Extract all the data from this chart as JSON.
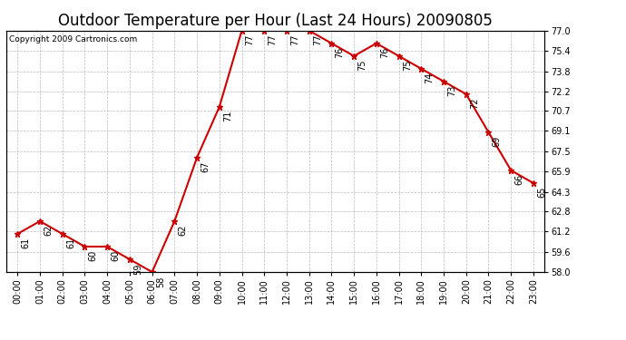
{
  "title": "Outdoor Temperature per Hour (Last 24 Hours) 20090805",
  "copyright": "Copyright 2009 Cartronics.com",
  "hours": [
    "00:00",
    "01:00",
    "02:00",
    "03:00",
    "04:00",
    "05:00",
    "06:00",
    "07:00",
    "08:00",
    "09:00",
    "10:00",
    "11:00",
    "12:00",
    "13:00",
    "14:00",
    "15:00",
    "16:00",
    "17:00",
    "18:00",
    "19:00",
    "20:00",
    "21:00",
    "22:00",
    "23:00"
  ],
  "temps": [
    61,
    62,
    61,
    60,
    60,
    59,
    58,
    62,
    67,
    71,
    77,
    77,
    77,
    77,
    76,
    75,
    76,
    75,
    74,
    73,
    72,
    69,
    66,
    65
  ],
  "ylim_min": 58.0,
  "ylim_max": 77.0,
  "yticks": [
    58.0,
    59.6,
    61.2,
    62.8,
    64.3,
    65.9,
    67.5,
    69.1,
    70.7,
    72.2,
    73.8,
    75.4,
    77.0
  ],
  "line_color": "#cc0000",
  "marker_color": "#cc0000",
  "bg_color": "#ffffff",
  "grid_color": "#bbbbbb",
  "title_fontsize": 12,
  "label_fontsize": 7,
  "annot_fontsize": 7,
  "copyright_fontsize": 6.5
}
